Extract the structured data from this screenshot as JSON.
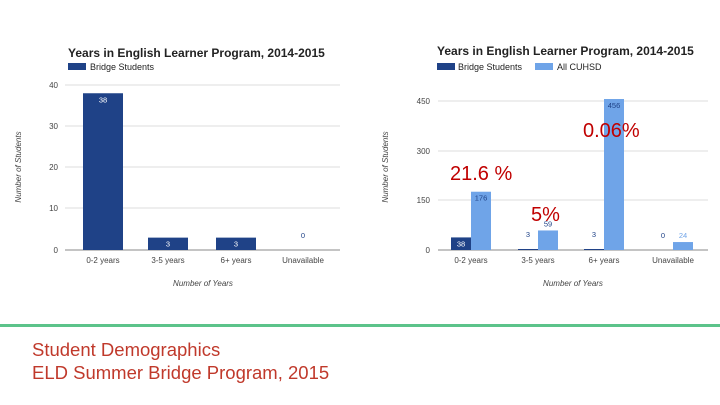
{
  "chart_data": [
    {
      "type": "bar",
      "title": "Years in English Learner Program, 2014-2015",
      "categories": [
        "0-2 years",
        "3-5 years",
        "6+ years",
        "Unavailable"
      ],
      "series": [
        {
          "name": "Bridge Students",
          "values": [
            38,
            3,
            3,
            0
          ],
          "labels": [
            "38",
            "3",
            "3",
            "0"
          ],
          "color": "#1f4287"
        }
      ],
      "xlabel": "Number of Years",
      "ylabel": "Number of Students",
      "ylim": [
        0,
        40
      ],
      "yticks": [
        "40",
        "30",
        "20",
        "10",
        "0"
      ],
      "grid": true,
      "legend": "top-left"
    },
    {
      "type": "bar",
      "title": "Years in English Learner Program, 2014-2015",
      "categories": [
        "0-2 years",
        "3-5 years",
        "6+ years",
        "Unavailable"
      ],
      "series": [
        {
          "name": "Bridge Students",
          "values": [
            38,
            3,
            3,
            0
          ],
          "labels": [
            "38",
            "3",
            "3",
            "0"
          ],
          "color": "#1f4287"
        },
        {
          "name": "All CUHSD",
          "values": [
            176,
            59,
            456,
            24
          ],
          "labels": [
            "176",
            "59",
            "456",
            "24"
          ],
          "color": "#6fa4e8"
        }
      ],
      "xlabel": "Number of Years",
      "ylabel": "Number of Students",
      "ylim": [
        0,
        450
      ],
      "yticks": [
        "450",
        "300",
        "150",
        "0"
      ],
      "grid": true,
      "legend": "top-left",
      "annotations": [
        "0.06%",
        "21.6 %",
        "5%"
      ]
    }
  ],
  "caption": {
    "line1": "Student Demographics",
    "line2": "ELD Summer Bridge Program, 2015"
  }
}
